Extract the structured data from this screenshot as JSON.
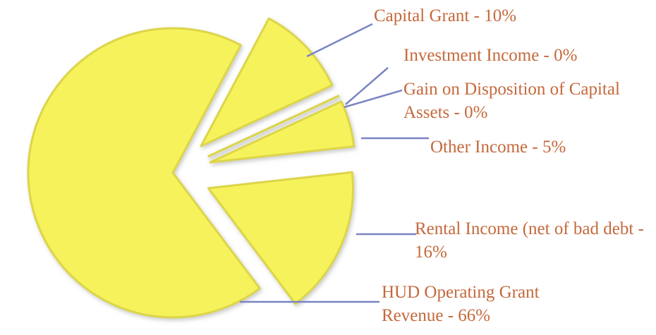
{
  "chart_data": {
    "type": "pie",
    "categories": [
      "HUD Operating Grant Revenue - 66%",
      "Capital Grant - 10%",
      "Investment Income - 0%",
      "Gain on Disposition of Capital Assets - 0%",
      "Other Income - 5%",
      "Rental Income (net of bad debt - 16%"
    ],
    "values": [
      66,
      10,
      0,
      0,
      5,
      16
    ],
    "color": "#f6f25c",
    "label_color": "#c4693c",
    "line_color": "#7a84c2"
  }
}
